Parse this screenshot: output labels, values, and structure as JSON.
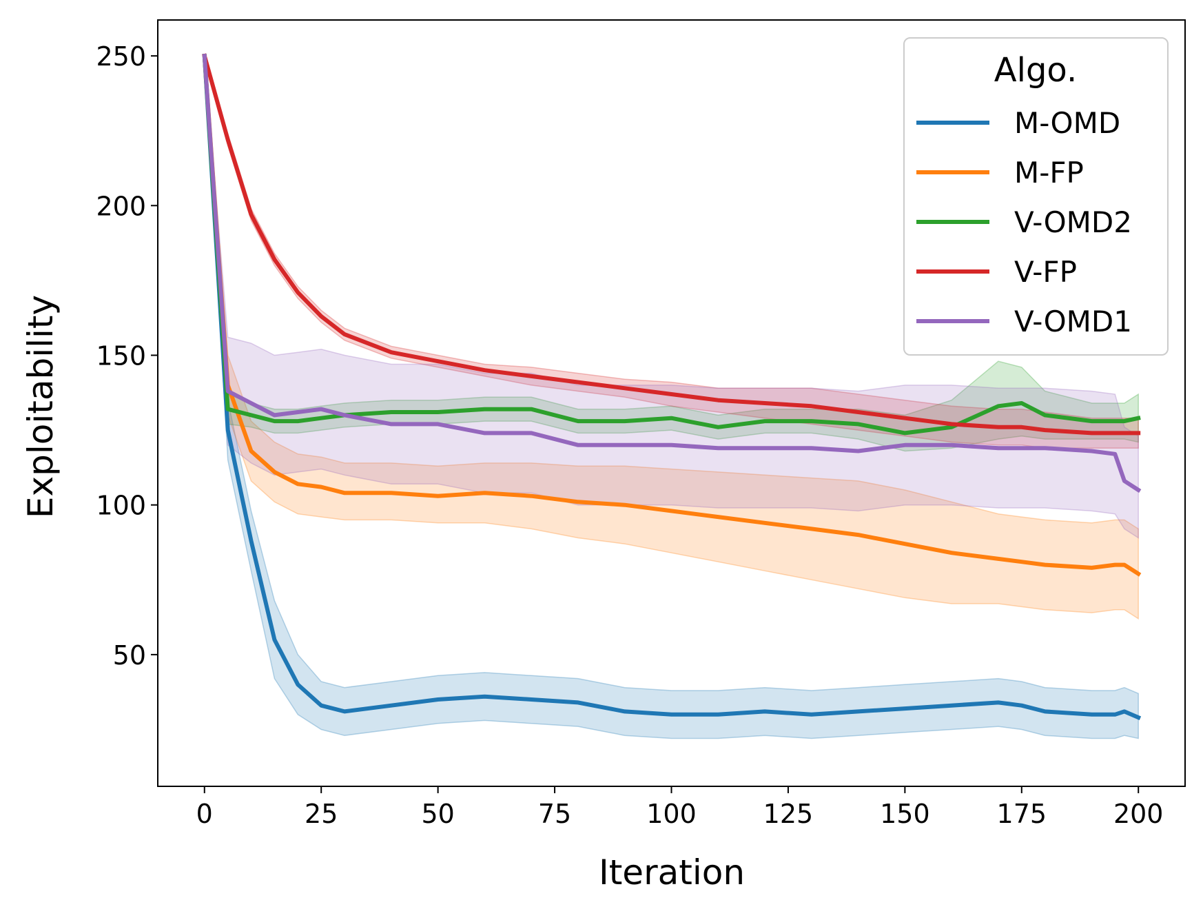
{
  "chart_data": {
    "type": "line",
    "title": "",
    "xlabel": "Iteration",
    "ylabel": "Exploitability",
    "xlim": [
      -10,
      210
    ],
    "ylim": [
      6,
      262
    ],
    "x_ticks": [
      0,
      25,
      50,
      75,
      100,
      125,
      150,
      175,
      200
    ],
    "y_ticks": [
      50,
      100,
      150,
      200,
      250
    ],
    "legend": {
      "title": "Algo.",
      "location": "upper right"
    },
    "x": [
      0,
      5,
      10,
      15,
      20,
      25,
      30,
      40,
      50,
      60,
      70,
      80,
      90,
      100,
      110,
      120,
      130,
      140,
      150,
      160,
      170,
      175,
      180,
      190,
      195,
      197,
      200
    ],
    "series": [
      {
        "name": "M-OMD",
        "color": "#1f77b4",
        "values": [
          250,
          125,
          88,
          55,
          40,
          33,
          31,
          33,
          35,
          36,
          35,
          34,
          31,
          30,
          30,
          31,
          30,
          31,
          32,
          33,
          34,
          33,
          31,
          30,
          30,
          31,
          29
        ],
        "band_low": [
          250,
          115,
          78,
          42,
          30,
          25,
          23,
          25,
          27,
          28,
          27,
          26,
          23,
          22,
          22,
          23,
          22,
          23,
          24,
          25,
          26,
          25,
          23,
          22,
          22,
          23,
          22
        ],
        "band_high": [
          250,
          135,
          98,
          68,
          50,
          41,
          39,
          41,
          43,
          44,
          43,
          42,
          39,
          38,
          38,
          39,
          38,
          39,
          40,
          41,
          42,
          41,
          39,
          38,
          38,
          39,
          37
        ]
      },
      {
        "name": "M-FP",
        "color": "#ff7f0e",
        "values": [
          250,
          140,
          118,
          111,
          107,
          106,
          104,
          104,
          103,
          104,
          103,
          101,
          100,
          98,
          96,
          94,
          92,
          90,
          87,
          84,
          82,
          81,
          80,
          79,
          80,
          80,
          77
        ],
        "band_low": [
          250,
          130,
          108,
          101,
          97,
          96,
          95,
          95,
          94,
          94,
          92,
          89,
          87,
          84,
          81,
          78,
          75,
          72,
          69,
          67,
          67,
          66,
          65,
          64,
          65,
          65,
          62
        ],
        "band_high": [
          250,
          150,
          128,
          121,
          117,
          116,
          114,
          114,
          113,
          114,
          114,
          113,
          113,
          112,
          111,
          110,
          109,
          108,
          105,
          101,
          97,
          96,
          95,
          94,
          95,
          95,
          92
        ]
      },
      {
        "name": "V-OMD2",
        "color": "#2ca02c",
        "values": [
          250,
          132,
          130,
          128,
          128,
          129,
          130,
          131,
          131,
          132,
          132,
          128,
          128,
          129,
          126,
          128,
          128,
          127,
          124,
          126,
          133,
          134,
          130,
          128,
          128,
          128,
          129
        ],
        "band_low": [
          250,
          127,
          126,
          124,
          124,
          125,
          126,
          127,
          127,
          128,
          128,
          124,
          124,
          125,
          122,
          124,
          124,
          122,
          118,
          119,
          122,
          123,
          122,
          122,
          122,
          122,
          121
        ],
        "band_high": [
          250,
          137,
          134,
          132,
          132,
          133,
          134,
          135,
          135,
          136,
          136,
          132,
          132,
          133,
          130,
          132,
          132,
          132,
          130,
          135,
          148,
          146,
          138,
          134,
          134,
          134,
          137
        ]
      },
      {
        "name": "V-FP",
        "color": "#d62728",
        "values": [
          250,
          222,
          197,
          182,
          171,
          163,
          157,
          151,
          148,
          145,
          143,
          141,
          139,
          137,
          135,
          134,
          133,
          131,
          129,
          127,
          126,
          126,
          125,
          124,
          124,
          124,
          124
        ],
        "band_low": [
          250,
          220,
          195,
          180,
          169,
          161,
          155,
          149,
          146,
          143,
          140,
          138,
          136,
          133,
          131,
          129,
          127,
          125,
          123,
          121,
          120,
          120,
          119,
          119,
          119,
          119,
          119
        ],
        "band_high": [
          250,
          224,
          199,
          184,
          173,
          165,
          159,
          153,
          150,
          147,
          146,
          144,
          142,
          141,
          139,
          139,
          139,
          137,
          135,
          133,
          132,
          132,
          131,
          129,
          129,
          129,
          129
        ]
      },
      {
        "name": "V-OMD1",
        "color": "#9467bd",
        "values": [
          250,
          138,
          134,
          130,
          131,
          132,
          130,
          127,
          127,
          124,
          124,
          120,
          120,
          120,
          119,
          119,
          119,
          118,
          120,
          120,
          119,
          119,
          119,
          118,
          117,
          108,
          105
        ],
        "band_low": [
          250,
          120,
          114,
          110,
          111,
          112,
          110,
          107,
          107,
          104,
          104,
          100,
          100,
          100,
          99,
          99,
          99,
          98,
          100,
          100,
          99,
          99,
          99,
          98,
          97,
          92,
          89
        ],
        "band_high": [
          250,
          156,
          154,
          150,
          151,
          152,
          150,
          147,
          147,
          144,
          144,
          140,
          140,
          140,
          139,
          139,
          139,
          138,
          140,
          140,
          139,
          139,
          139,
          138,
          137,
          126,
          123
        ]
      }
    ]
  }
}
